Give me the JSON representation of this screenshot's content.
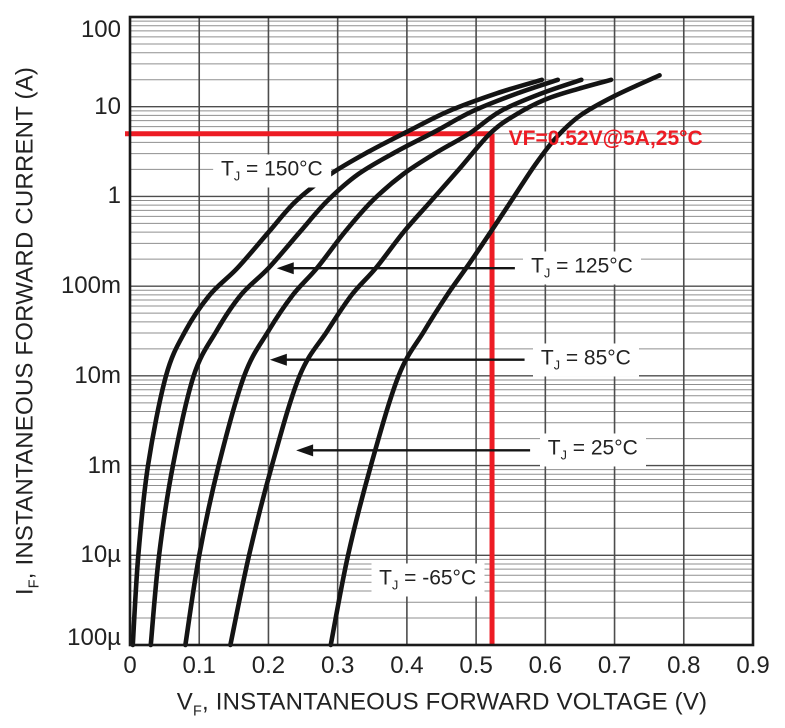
{
  "chart_data": {
    "type": "line",
    "title": "",
    "x_axis": {
      "label": "VF, INSTANTANEOUS FORWARD VOLTAGE (V)",
      "label_parts": {
        "pre": "V",
        "sub": "F",
        "post": ", INSTANTANEOUS FORWARD VOLTAGE (V)"
      },
      "ticks": [
        "0",
        "0.1",
        "0.2",
        "0.3",
        "0.4",
        "0.5",
        "0.6",
        "0.7",
        "0.8",
        "0.9"
      ],
      "range": [
        0,
        0.9
      ],
      "grid": "major verticals only"
    },
    "y_axis": {
      "label": "IF, INSTANTANEOUS FORWARD CURRENT (A)",
      "label_parts": {
        "pre": "I",
        "sub": "F",
        "post": ", INSTANTANEOUS FORWARD CURRENT (A)"
      },
      "scale": "log",
      "ticks_top_to_bottom": [
        "100",
        "10",
        "1",
        "100m",
        "10m",
        "1m",
        "10µ",
        "100µ"
      ],
      "decades_between_labeled_lines": 7,
      "note": "log grid with minor lines 2-9 in each decade; tick labels as printed on the datasheet"
    },
    "series": [
      {
        "name": "TJ = 150°C",
        "label_parts": {
          "pre": "T",
          "sub": "J",
          "post": " = 150°C"
        },
        "label_at": {
          "v": 0.205,
          "d": 5.28
        },
        "label_align": "center",
        "arrow": null,
        "points_v_decade": [
          [
            0.004,
            0
          ],
          [
            0.012,
            1
          ],
          [
            0.026,
            2
          ],
          [
            0.052,
            3
          ],
          [
            0.08,
            3.5
          ],
          [
            0.115,
            3.9
          ],
          [
            0.155,
            4.2
          ],
          [
            0.2,
            4.6
          ],
          [
            0.24,
            4.95
          ],
          [
            0.29,
            5.25
          ],
          [
            0.345,
            5.5
          ],
          [
            0.4,
            5.72
          ],
          [
            0.46,
            5.95
          ],
          [
            0.53,
            6.15
          ],
          [
            0.595,
            6.3
          ]
        ]
      },
      {
        "name": "TJ = 125°C",
        "label_parts": {
          "pre": "T",
          "sub": "J",
          "post": " = 125°C"
        },
        "label_at": {
          "v": 0.568,
          "d": 4.2
        },
        "label_align": "left",
        "arrow": {
          "from_v": 0.556,
          "to_v": 0.212
        },
        "points_v_decade": [
          [
            0.03,
            0
          ],
          [
            0.042,
            1
          ],
          [
            0.062,
            2
          ],
          [
            0.092,
            3
          ],
          [
            0.125,
            3.5
          ],
          [
            0.16,
            3.9
          ],
          [
            0.2,
            4.2
          ],
          [
            0.245,
            4.6
          ],
          [
            0.285,
            4.95
          ],
          [
            0.33,
            5.25
          ],
          [
            0.385,
            5.5
          ],
          [
            0.44,
            5.72
          ],
          [
            0.495,
            5.95
          ],
          [
            0.56,
            6.15
          ],
          [
            0.618,
            6.3
          ]
        ]
      },
      {
        "name": "TJ = 85°C",
        "label_parts": {
          "pre": "T",
          "sub": "J",
          "post": " = 85°C"
        },
        "label_at": {
          "v": 0.582,
          "d": 3.18
        },
        "label_align": "left",
        "arrow": {
          "from_v": 0.57,
          "to_v": 0.202
        },
        "points_v_decade": [
          [
            0.08,
            0
          ],
          [
            0.1,
            1
          ],
          [
            0.128,
            2
          ],
          [
            0.165,
            3
          ],
          [
            0.2,
            3.5
          ],
          [
            0.235,
            3.9
          ],
          [
            0.27,
            4.2
          ],
          [
            0.31,
            4.6
          ],
          [
            0.35,
            4.95
          ],
          [
            0.395,
            5.25
          ],
          [
            0.445,
            5.5
          ],
          [
            0.49,
            5.7
          ],
          [
            0.535,
            5.95
          ],
          [
            0.595,
            6.15
          ],
          [
            0.652,
            6.3
          ]
        ]
      },
      {
        "name": "TJ = 25°C",
        "label_parts": {
          "pre": "T",
          "sub": "J",
          "post": " = 25°C"
        },
        "label_at": {
          "v": 0.592,
          "d": 2.17
        },
        "label_align": "left",
        "arrow": {
          "from_v": 0.578,
          "to_v": 0.24
        },
        "points_v_decade": [
          [
            0.145,
            0
          ],
          [
            0.172,
            1
          ],
          [
            0.205,
            2
          ],
          [
            0.245,
            3
          ],
          [
            0.285,
            3.5
          ],
          [
            0.32,
            3.9
          ],
          [
            0.355,
            4.2
          ],
          [
            0.395,
            4.6
          ],
          [
            0.435,
            4.95
          ],
          [
            0.475,
            5.3
          ],
          [
            0.52,
            5.7
          ],
          [
            0.555,
            5.9
          ],
          [
            0.6,
            6.08
          ],
          [
            0.648,
            6.2
          ],
          [
            0.695,
            6.3
          ]
        ]
      },
      {
        "name": "TJ = -65°C",
        "label_parts": {
          "pre": "T",
          "sub": "J",
          "post": " = -65°C"
        },
        "label_at": {
          "v": 0.43,
          "d": 0.72
        },
        "label_align": "center",
        "arrow": null,
        "points_v_decade": [
          [
            0.29,
            0
          ],
          [
            0.315,
            1
          ],
          [
            0.348,
            2
          ],
          [
            0.388,
            3
          ],
          [
            0.425,
            3.5
          ],
          [
            0.458,
            3.9
          ],
          [
            0.49,
            4.25
          ],
          [
            0.525,
            4.65
          ],
          [
            0.555,
            5.0
          ],
          [
            0.585,
            5.35
          ],
          [
            0.615,
            5.65
          ],
          [
            0.65,
            5.9
          ],
          [
            0.7,
            6.12
          ],
          [
            0.765,
            6.35
          ]
        ]
      }
    ],
    "annotation": {
      "text": "VF=0.52V@5A,25°C",
      "marker_v": 0.523,
      "marker_d": 5.699,
      "text_at": {
        "v": 0.547,
        "d": 5.64
      }
    },
    "colors": {
      "curve": "#141414",
      "grid_minor": "#8f8f8f",
      "grid_major": "#4d4d4d",
      "frame": "#1a1a1a",
      "red": "#ed1c24"
    }
  }
}
